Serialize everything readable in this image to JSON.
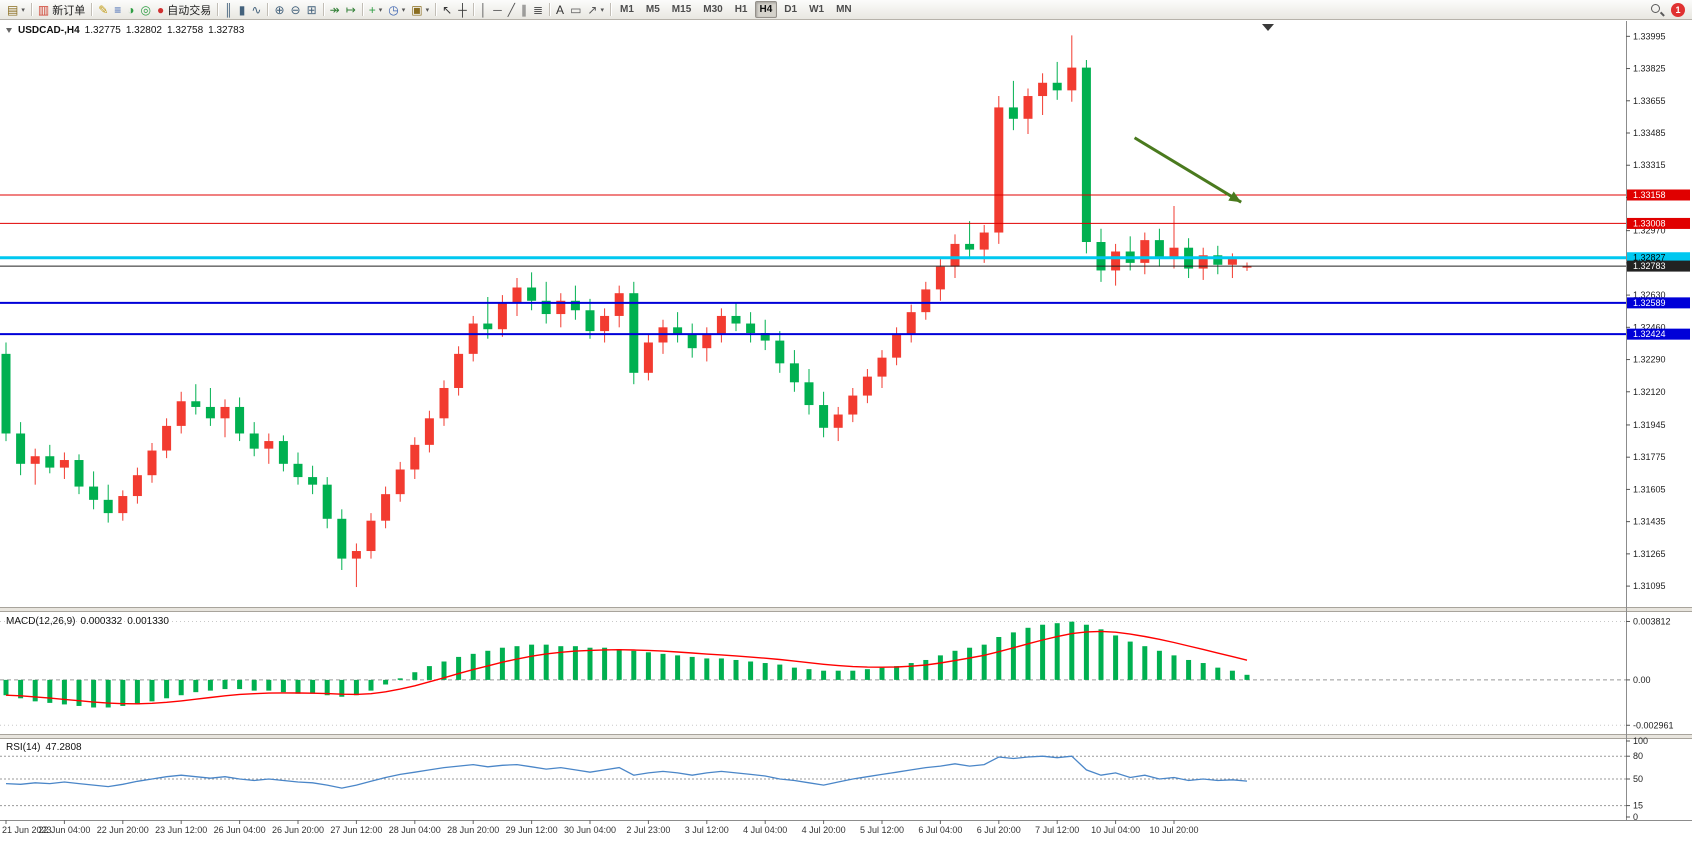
{
  "toolbar": {
    "new_order_label": "新订单",
    "autotrading_label": "自动交易",
    "timeframes": [
      "M1",
      "M5",
      "M15",
      "M30",
      "H1",
      "H4",
      "D1",
      "W1",
      "MN"
    ],
    "active_timeframe": "H4",
    "notification_count": "1",
    "items": [
      {
        "name": "new-chart-icon",
        "glyph": "▤",
        "color": "#8a6d1f",
        "caret": true
      },
      {
        "sep": true
      },
      {
        "name": "new-order-button",
        "glyph": "▥",
        "color": "#cf4030",
        "label": "新订单"
      },
      {
        "sep": true
      },
      {
        "name": "metaeditor-icon",
        "glyph": "✎",
        "color": "#c09a10"
      },
      {
        "name": "market-watch-icon",
        "glyph": "≡",
        "color": "#3a62b0"
      },
      {
        "name": "data-window-icon",
        "glyph": "◑",
        "color": "#2f9e44"
      },
      {
        "name": "navigator-icon",
        "glyph": "◎",
        "color": "#2f9e44"
      },
      {
        "name": "autotrading-button",
        "glyph": "●",
        "color": "#d03030",
        "label": "自动交易"
      },
      {
        "sep": true
      },
      {
        "name": "bar-chart-icon",
        "glyph": "║",
        "color": "#44627c"
      },
      {
        "name": "candlestick-chart-icon",
        "glyph": "▮",
        "color": "#44627c"
      },
      {
        "name": "line-chart-icon",
        "glyph": "∿",
        "color": "#44627c"
      },
      {
        "sep": true
      },
      {
        "name": "zoom-in-icon",
        "glyph": "⊕",
        "color": "#44627c"
      },
      {
        "name": "zoom-out-icon",
        "glyph": "⊖",
        "color": "#44627c"
      },
      {
        "name": "tile-windows-icon",
        "glyph": "⊞",
        "color": "#44627c"
      },
      {
        "sep": true
      },
      {
        "name": "auto-scroll-icon",
        "glyph": "↠",
        "color": "#2f7e34"
      },
      {
        "name": "chart-shift-icon",
        "glyph": "↦",
        "color": "#2f7e34"
      },
      {
        "sep": true
      },
      {
        "name": "indicators-icon",
        "glyph": "+",
        "color": "#2f9e44",
        "caret": true
      },
      {
        "name": "periods-icon",
        "glyph": "◷",
        "color": "#3a62b0",
        "caret": true
      },
      {
        "name": "templates-icon",
        "glyph": "▣",
        "color": "#8a6d1f",
        "caret": true
      },
      {
        "sep": true
      },
      {
        "name": "cursor-icon",
        "glyph": "↖",
        "color": "#333333"
      },
      {
        "name": "crosshair-icon",
        "glyph": "┼",
        "color": "#333333"
      },
      {
        "sep": true
      },
      {
        "name": "vertical-line-icon",
        "glyph": "│",
        "color": "#555555"
      },
      {
        "name": "horizontal-line-icon",
        "glyph": "─",
        "color": "#555555"
      },
      {
        "name": "trendline-icon",
        "glyph": "╱",
        "color": "#555555"
      },
      {
        "name": "channel-icon",
        "glyph": "∥",
        "color": "#555555"
      },
      {
        "name": "fibonacci-icon",
        "glyph": "≣",
        "color": "#555555"
      },
      {
        "sep": true
      },
      {
        "name": "text-icon",
        "glyph": "A",
        "color": "#333333"
      },
      {
        "name": "label-icon",
        "glyph": "▭",
        "color": "#555555"
      },
      {
        "name": "arrows-icon",
        "glyph": "↗",
        "color": "#555555",
        "caret": true
      },
      {
        "sep": true
      }
    ]
  },
  "chart": {
    "symbol": "USDCAD-,H4",
    "open": "1.32775",
    "high": "1.32802",
    "low": "1.32758",
    "close": "1.32783"
  },
  "indicators": {
    "macd": {
      "name": "MACD(12,26,9)",
      "value_main": "0.000332",
      "value_signal": "0.001330"
    },
    "rsi": {
      "name": "RSI(14)",
      "value": "47.2808"
    }
  },
  "chart_data": [
    {
      "type": "candlestick",
      "symbol": "USDCAD-",
      "timeframe": "H4",
      "bull_color": "#f23b30",
      "bear_color": "#00b050",
      "ylim": [
        1.3099,
        1.3406
      ],
      "y_ticks": [
        "1.33995",
        "1.33825",
        "1.33655",
        "1.33485",
        "1.33315",
        "1.33145",
        "1.32970",
        "1.32800",
        "1.32630",
        "1.32460",
        "1.32290",
        "1.32120",
        "1.31945",
        "1.31775",
        "1.31605",
        "1.31435",
        "1.31265",
        "1.31095"
      ],
      "x_labels": [
        "21 Jun 2023",
        "22 Jun 04:00",
        "22 Jun 20:00",
        "23 Jun 12:00",
        "26 Jun 04:00",
        "26 Jun 20:00",
        "27 Jun 12:00",
        "28 Jun 04:00",
        "28 Jun 20:00",
        "29 Jun 12:00",
        "30 Jun 04:00",
        "2 Jul 23:00",
        "3 Jul 12:00",
        "4 Jul 04:00",
        "4 Jul 20:00",
        "5 Jul 12:00",
        "6 Jul 04:00",
        "6 Jul 20:00",
        "7 Jul 12:00",
        "10 Jul 04:00",
        "10 Jul 20:00"
      ],
      "x_label_step": 4,
      "candles": [
        [
          1.3232,
          1.3238,
          1.3186,
          1.319
        ],
        [
          1.319,
          1.3196,
          1.3168,
          1.3174
        ],
        [
          1.3174,
          1.3182,
          1.3163,
          1.3178
        ],
        [
          1.3178,
          1.3184,
          1.3169,
          1.3172
        ],
        [
          1.3172,
          1.318,
          1.3166,
          1.3176
        ],
        [
          1.3176,
          1.3179,
          1.3158,
          1.3162
        ],
        [
          1.3162,
          1.317,
          1.315,
          1.3155
        ],
        [
          1.3155,
          1.3163,
          1.3143,
          1.3148
        ],
        [
          1.3148,
          1.316,
          1.3144,
          1.3157
        ],
        [
          1.3157,
          1.3172,
          1.3153,
          1.3168
        ],
        [
          1.3168,
          1.3185,
          1.3164,
          1.3181
        ],
        [
          1.3181,
          1.3198,
          1.3177,
          1.3194
        ],
        [
          1.3194,
          1.3212,
          1.319,
          1.3207
        ],
        [
          1.3207,
          1.3216,
          1.32,
          1.3204
        ],
        [
          1.3204,
          1.3214,
          1.3194,
          1.3198
        ],
        [
          1.3198,
          1.3208,
          1.3188,
          1.3204
        ],
        [
          1.3204,
          1.3209,
          1.3186,
          1.319
        ],
        [
          1.319,
          1.3196,
          1.3178,
          1.3182
        ],
        [
          1.3182,
          1.319,
          1.3174,
          1.3186
        ],
        [
          1.3186,
          1.3189,
          1.317,
          1.3174
        ],
        [
          1.3174,
          1.318,
          1.3163,
          1.3167
        ],
        [
          1.3167,
          1.3173,
          1.3158,
          1.3163
        ],
        [
          1.3163,
          1.3167,
          1.314,
          1.3145
        ],
        [
          1.3145,
          1.315,
          1.3118,
          1.3124
        ],
        [
          1.3124,
          1.3132,
          1.3109,
          1.3128
        ],
        [
          1.3128,
          1.3148,
          1.3124,
          1.3144
        ],
        [
          1.3144,
          1.3162,
          1.314,
          1.3158
        ],
        [
          1.3158,
          1.3175,
          1.3154,
          1.3171
        ],
        [
          1.3171,
          1.3188,
          1.3166,
          1.3184
        ],
        [
          1.3184,
          1.3202,
          1.318,
          1.3198
        ],
        [
          1.3198,
          1.3218,
          1.3194,
          1.3214
        ],
        [
          1.3214,
          1.3236,
          1.321,
          1.3232
        ],
        [
          1.3232,
          1.3252,
          1.3228,
          1.3248
        ],
        [
          1.3248,
          1.3262,
          1.324,
          1.3245
        ],
        [
          1.3245,
          1.3263,
          1.3241,
          1.3259
        ],
        [
          1.3259,
          1.3272,
          1.3252,
          1.3267
        ],
        [
          1.3267,
          1.3275,
          1.3255,
          1.326
        ],
        [
          1.326,
          1.327,
          1.3248,
          1.3253
        ],
        [
          1.3253,
          1.3264,
          1.3246,
          1.326
        ],
        [
          1.326,
          1.3268,
          1.325,
          1.3255
        ],
        [
          1.3255,
          1.3261,
          1.324,
          1.3244
        ],
        [
          1.3244,
          1.3256,
          1.3238,
          1.3252
        ],
        [
          1.3252,
          1.3268,
          1.3246,
          1.3264
        ],
        [
          1.3264,
          1.327,
          1.3216,
          1.3222
        ],
        [
          1.3222,
          1.3242,
          1.3218,
          1.3238
        ],
        [
          1.3238,
          1.325,
          1.3232,
          1.3246
        ],
        [
          1.3246,
          1.3254,
          1.3238,
          1.3242
        ],
        [
          1.3242,
          1.3248,
          1.323,
          1.3235
        ],
        [
          1.3235,
          1.3246,
          1.3228,
          1.3242
        ],
        [
          1.3242,
          1.3256,
          1.3238,
          1.3252
        ],
        [
          1.3252,
          1.3259,
          1.3244,
          1.3248
        ],
        [
          1.3248,
          1.3254,
          1.3238,
          1.3243
        ],
        [
          1.3243,
          1.325,
          1.3234,
          1.3239
        ],
        [
          1.3239,
          1.3244,
          1.3222,
          1.3227
        ],
        [
          1.3227,
          1.3234,
          1.3212,
          1.3217
        ],
        [
          1.3217,
          1.3224,
          1.32,
          1.3205
        ],
        [
          1.3205,
          1.3212,
          1.3188,
          1.3193
        ],
        [
          1.3193,
          1.3204,
          1.3186,
          1.32
        ],
        [
          1.32,
          1.3214,
          1.3196,
          1.321
        ],
        [
          1.321,
          1.3224,
          1.3206,
          1.322
        ],
        [
          1.322,
          1.3234,
          1.3214,
          1.323
        ],
        [
          1.323,
          1.3246,
          1.3226,
          1.3242
        ],
        [
          1.3242,
          1.3258,
          1.3238,
          1.3254
        ],
        [
          1.3254,
          1.327,
          1.325,
          1.3266
        ],
        [
          1.3266,
          1.3282,
          1.326,
          1.3278
        ],
        [
          1.3278,
          1.3295,
          1.3272,
          1.329
        ],
        [
          1.329,
          1.3302,
          1.3282,
          1.3287
        ],
        [
          1.3287,
          1.33,
          1.328,
          1.3296
        ],
        [
          1.3296,
          1.3368,
          1.329,
          1.3362
        ],
        [
          1.3362,
          1.3376,
          1.335,
          1.3356
        ],
        [
          1.3356,
          1.3372,
          1.3348,
          1.3368
        ],
        [
          1.3368,
          1.338,
          1.3358,
          1.3375
        ],
        [
          1.3375,
          1.3386,
          1.3366,
          1.3371
        ],
        [
          1.3371,
          1.34,
          1.3365,
          1.3383
        ],
        [
          1.3383,
          1.3387,
          1.3285,
          1.3291
        ],
        [
          1.3291,
          1.3298,
          1.327,
          1.3276
        ],
        [
          1.3276,
          1.329,
          1.3268,
          1.3286
        ],
        [
          1.3286,
          1.3294,
          1.3276,
          1.328
        ],
        [
          1.328,
          1.3296,
          1.3274,
          1.3292
        ],
        [
          1.3292,
          1.3298,
          1.3278,
          1.3283
        ],
        [
          1.3283,
          1.331,
          1.3277,
          1.3288
        ],
        [
          1.3288,
          1.3293,
          1.3272,
          1.3277
        ],
        [
          1.3277,
          1.3288,
          1.3271,
          1.3284
        ],
        [
          1.3284,
          1.3289,
          1.3274,
          1.3279
        ],
        [
          1.3279,
          1.3285,
          1.3272,
          1.3282
        ],
        [
          1.32775,
          1.32802,
          1.32758,
          1.32783
        ]
      ],
      "hlines": [
        {
          "price": 1.33158,
          "label": "1.33158",
          "color": "#e00000",
          "width": 1,
          "text": "#ffffff"
        },
        {
          "price": 1.33008,
          "label": "1.33008",
          "color": "#e00000",
          "width": 1,
          "text": "#ffffff"
        },
        {
          "price": 1.32827,
          "label": "1.32827",
          "color": "#00c8f0",
          "width": 3,
          "text": "#000000"
        },
        {
          "price": 1.32783,
          "label": "1.32783",
          "color": "#222222",
          "width": 1,
          "text": "#ffffff",
          "role": "bid"
        },
        {
          "price": 1.32589,
          "label": "1.32589",
          "color": "#0000d8",
          "width": 2,
          "text": "#ffffff"
        },
        {
          "price": 1.32424,
          "label": "1.32424",
          "color": "#0000d8",
          "width": 2,
          "text": "#ffffff"
        }
      ],
      "arrow": {
        "from_bar": 77.3,
        "from_price": 1.3346,
        "to_bar": 84.6,
        "to_price": 1.3312,
        "color": "#4a7a1e"
      }
    },
    {
      "type": "bar",
      "name": "MACD(12,26,9)",
      "histogram_color": "#00b050",
      "signal_color": "#ff0000",
      "signal_period": 9,
      "ylim": [
        -0.0034,
        0.0043
      ],
      "y_ticks": [
        {
          "v": 0.003812,
          "label": "0.003812"
        },
        {
          "v": 0,
          "label": "0.00"
        },
        {
          "v": -0.002961,
          "label": "-0.002961"
        }
      ],
      "histogram": [
        -0.001,
        -0.0012,
        -0.0014,
        -0.0015,
        -0.0016,
        -0.0017,
        -0.0018,
        -0.0018,
        -0.0017,
        -0.0016,
        -0.0014,
        -0.0012,
        -0.001,
        -0.0008,
        -0.0007,
        -0.0006,
        -0.0006,
        -0.0007,
        -0.0007,
        -0.0008,
        -0.0009,
        -0.0009,
        -0.001,
        -0.0011,
        -0.001,
        -0.0007,
        -0.0003,
        0.0001,
        0.0005,
        0.0009,
        0.0012,
        0.0015,
        0.0017,
        0.0019,
        0.0021,
        0.0022,
        0.0023,
        0.0023,
        0.0022,
        0.0022,
        0.0021,
        0.0021,
        0.002,
        0.0019,
        0.0018,
        0.0017,
        0.0016,
        0.0015,
        0.0014,
        0.0014,
        0.0013,
        0.0012,
        0.0011,
        0.001,
        0.0008,
        0.0007,
        0.0006,
        0.0006,
        0.0006,
        0.0007,
        0.0008,
        0.0009,
        0.0011,
        0.0013,
        0.0016,
        0.0019,
        0.0021,
        0.0023,
        0.0028,
        0.0031,
        0.0034,
        0.0036,
        0.0037,
        0.0038,
        0.0036,
        0.0033,
        0.0029,
        0.0025,
        0.0022,
        0.0019,
        0.0016,
        0.0013,
        0.0011,
        0.0008,
        0.0006,
        0.000332
      ]
    },
    {
      "type": "line",
      "name": "RSI(14)",
      "color": "#4a86c8",
      "ylim": [
        0,
        100
      ],
      "levels": [
        80,
        50,
        15
      ],
      "y_ticks": [
        {
          "v": 100,
          "label": "100"
        },
        {
          "v": 80,
          "label": "80"
        },
        {
          "v": 50,
          "label": "50"
        },
        {
          "v": 15,
          "label": "15"
        },
        {
          "v": 0,
          "label": "0"
        }
      ],
      "values": [
        44,
        43,
        45,
        44,
        46,
        44,
        42,
        40,
        43,
        47,
        50,
        53,
        55,
        53,
        51,
        53,
        50,
        48,
        50,
        48,
        46,
        45,
        42,
        38,
        42,
        47,
        52,
        56,
        59,
        62,
        65,
        67,
        69,
        66,
        68,
        69,
        66,
        63,
        65,
        62,
        59,
        62,
        65,
        55,
        58,
        60,
        58,
        55,
        58,
        60,
        58,
        56,
        54,
        50,
        48,
        45,
        42,
        46,
        50,
        53,
        56,
        59,
        62,
        65,
        67,
        70,
        67,
        69,
        79,
        77,
        79,
        80,
        78,
        80,
        62,
        55,
        58,
        52,
        55,
        50,
        52,
        48,
        50,
        48,
        49,
        47.2808
      ]
    }
  ]
}
